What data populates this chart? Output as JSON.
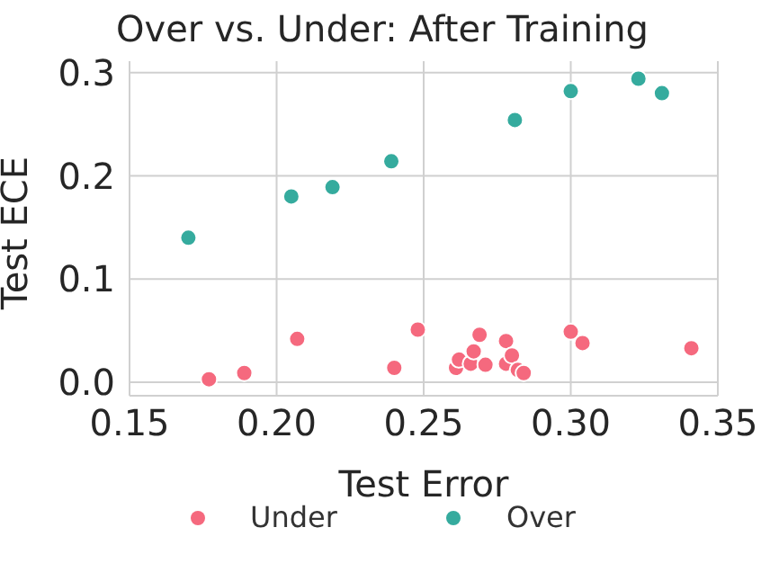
{
  "chart_data": {
    "type": "scatter",
    "title": "Over vs. Under: After Training",
    "xlabel": "Test Error",
    "ylabel": "Test ECE",
    "xlim": [
      0.15,
      0.35
    ],
    "xticks": [
      {
        "value": 0.15,
        "label": "0.15"
      },
      {
        "value": 0.2,
        "label": "0.20"
      },
      {
        "value": 0.25,
        "label": "0.25"
      },
      {
        "value": 0.3,
        "label": "0.30"
      },
      {
        "value": 0.35,
        "label": "0.35"
      }
    ],
    "ylim": [
      -0.013,
      0.311
    ],
    "yticks": [
      {
        "value": 0,
        "label": "0.0"
      },
      {
        "value": 0.1,
        "label": "0.1"
      },
      {
        "value": 0.2,
        "label": "0.2"
      },
      {
        "value": 0.3,
        "label": "0.3"
      }
    ],
    "grid": true,
    "legend": "bottom",
    "marker": "circle",
    "series": [
      {
        "name": "Under",
        "color": "#f5697e",
        "x": [
          0.177,
          0.189,
          0.207,
          0.24,
          0.248,
          0.261,
          0.262,
          0.266,
          0.267,
          0.269,
          0.271,
          0.278,
          0.278,
          0.28,
          0.282,
          0.284,
          0.3,
          0.304,
          0.341
        ],
        "values": [
          0.003,
          0.009,
          0.042,
          0.014,
          0.051,
          0.014,
          0.022,
          0.018,
          0.03,
          0.046,
          0.017,
          0.018,
          0.04,
          0.026,
          0.012,
          0.009,
          0.049,
          0.038,
          0.033
        ]
      },
      {
        "name": "Over",
        "color": "#35ab9e",
        "x": [
          0.17,
          0.205,
          0.219,
          0.239,
          0.281,
          0.3,
          0.323,
          0.331
        ],
        "values": [
          0.14,
          0.18,
          0.189,
          0.214,
          0.254,
          0.282,
          0.294,
          0.28
        ]
      }
    ]
  }
}
